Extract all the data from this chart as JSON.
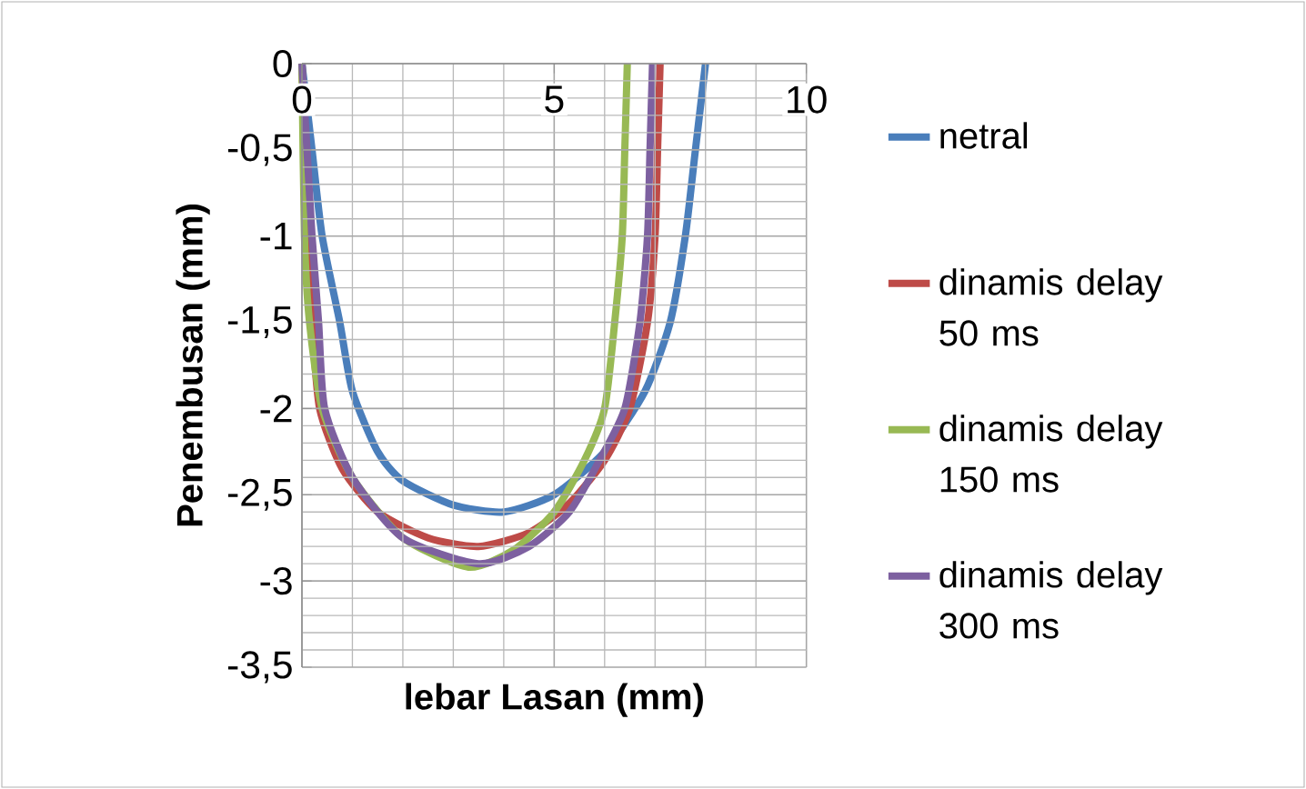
{
  "chart_data": {
    "type": "line",
    "xlabel": "lebar Lasan (mm)",
    "ylabel": "Penembusan (mm)",
    "xlim": [
      0,
      10
    ],
    "xticks": [
      0,
      5,
      10
    ],
    "ylim": [
      -3.5,
      0
    ],
    "yticks": [
      {
        "value": -3.5,
        "label": "-3,5"
      },
      {
        "value": -3,
        "label": "-3"
      },
      {
        "value": -2.5,
        "label": "-2,5"
      },
      {
        "value": -2,
        "label": "-2"
      },
      {
        "value": -1.5,
        "label": "-1,5"
      },
      {
        "value": -1,
        "label": "-1"
      },
      {
        "value": -0.5,
        "label": "-0,5"
      },
      {
        "value": 0,
        "label": "0"
      }
    ],
    "grid": true,
    "legend": "right",
    "series": [
      {
        "name": "netral",
        "color": "#4a7ebb",
        "x": [
          0,
          0.2,
          0.4,
          0.75,
          1.0,
          1.5,
          2,
          3,
          4,
          5,
          6,
          6.8,
          7.3,
          7.6,
          7.8,
          8.0
        ],
        "values": [
          0,
          -0.5,
          -1,
          -1.5,
          -1.9,
          -2.25,
          -2.42,
          -2.56,
          -2.6,
          -2.5,
          -2.25,
          -1.9,
          -1.5,
          -1,
          -0.5,
          0
        ]
      },
      {
        "name": "dinamis delay 50 ms",
        "color": "#be4b48",
        "x": [
          0,
          0.05,
          0.1,
          0.2,
          0.35,
          0.8,
          1.5,
          2.5,
          3.5,
          4.5,
          5.3,
          6,
          6.5,
          6.85,
          7.0,
          7.05,
          7.1
        ],
        "values": [
          0,
          -0.5,
          -1,
          -1.5,
          -2,
          -2.35,
          -2.6,
          -2.75,
          -2.8,
          -2.72,
          -2.55,
          -2.3,
          -2.0,
          -1.5,
          -1,
          -0.5,
          0
        ]
      },
      {
        "name": "dinamis delay 150 ms",
        "color": "#98b954",
        "x": [
          0,
          0.05,
          0.15,
          0.4,
          1,
          2,
          3.3,
          4.2,
          5,
          5.6,
          6.0,
          6.2,
          6.35,
          6.4,
          6.45
        ],
        "values": [
          0,
          -1,
          -1.5,
          -2,
          -2.4,
          -2.75,
          -2.92,
          -2.82,
          -2.6,
          -2.3,
          -2.0,
          -1.5,
          -1,
          -0.5,
          0
        ]
      },
      {
        "name": "dinamis delay 300 ms",
        "color": "#7d60a0",
        "x": [
          0,
          0.1,
          0.2,
          0.33,
          0.45,
          1,
          2,
          3.5,
          4.5,
          5.3,
          5.9,
          6.4,
          6.7,
          6.85,
          6.9,
          6.95
        ],
        "values": [
          0,
          -0.5,
          -1,
          -1.5,
          -2,
          -2.4,
          -2.75,
          -2.9,
          -2.8,
          -2.6,
          -2.3,
          -2.0,
          -1.5,
          -1,
          -0.5,
          0
        ]
      }
    ]
  }
}
